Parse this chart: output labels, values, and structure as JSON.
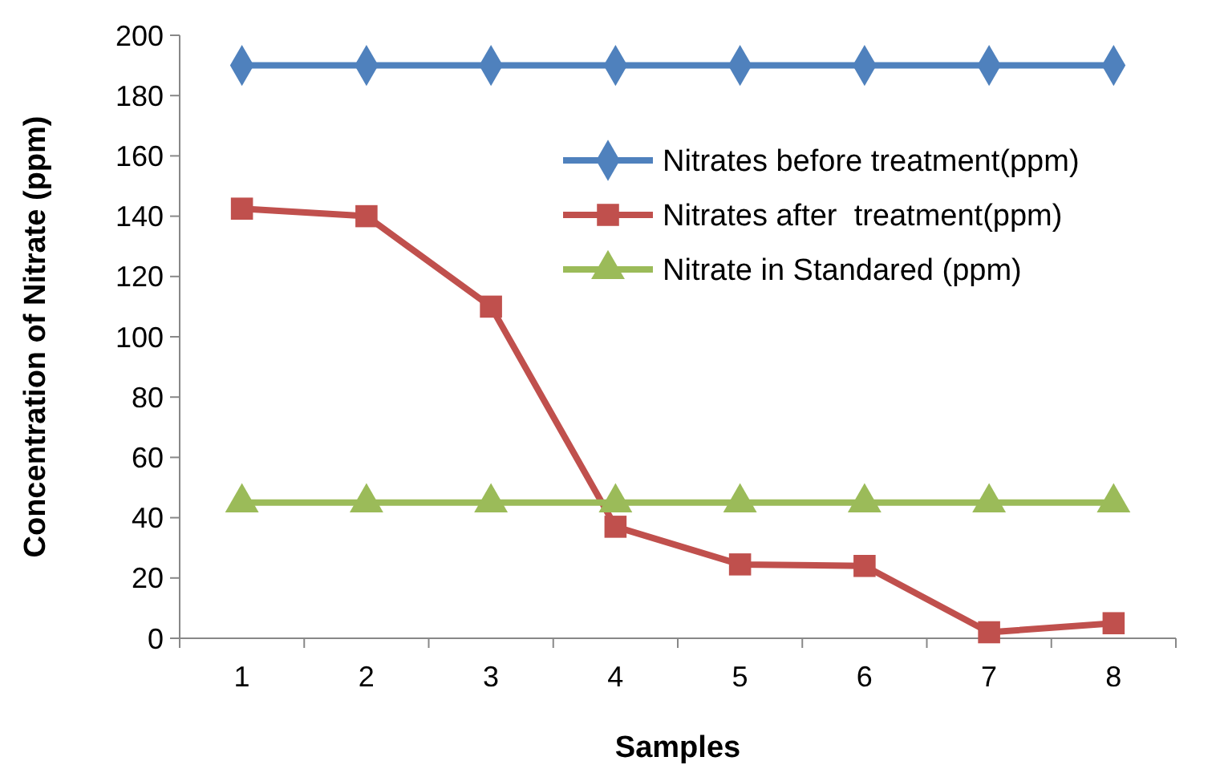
{
  "chart_data": {
    "type": "line",
    "xlabel": "Samples",
    "ylabel": "Concentration of Nitrate (ppm)",
    "categories": [
      "1",
      "2",
      "3",
      "4",
      "5",
      "6",
      "7",
      "8"
    ],
    "series": [
      {
        "name": "Nitrates before treatment(ppm)",
        "color": "#4f81bd",
        "marker": "diamond",
        "values": [
          190,
          190,
          190,
          190,
          190,
          190,
          190,
          190
        ]
      },
      {
        "name": "Nitrates after  treatment(ppm)",
        "color": "#c0504d",
        "marker": "square",
        "values": [
          142.5,
          140,
          110,
          37,
          24.5,
          24,
          2,
          5
        ]
      },
      {
        "name": "Nitrate in Standared (ppm)",
        "color": "#9bbb59",
        "marker": "triangle",
        "values": [
          45,
          45,
          45,
          45,
          45,
          45,
          45,
          45
        ]
      }
    ],
    "ylim": [
      0,
      200
    ],
    "yticks": [
      0,
      20,
      40,
      60,
      80,
      100,
      120,
      140,
      160,
      180,
      200
    ],
    "grid": false,
    "legend": "top right",
    "line_style": "solid"
  }
}
